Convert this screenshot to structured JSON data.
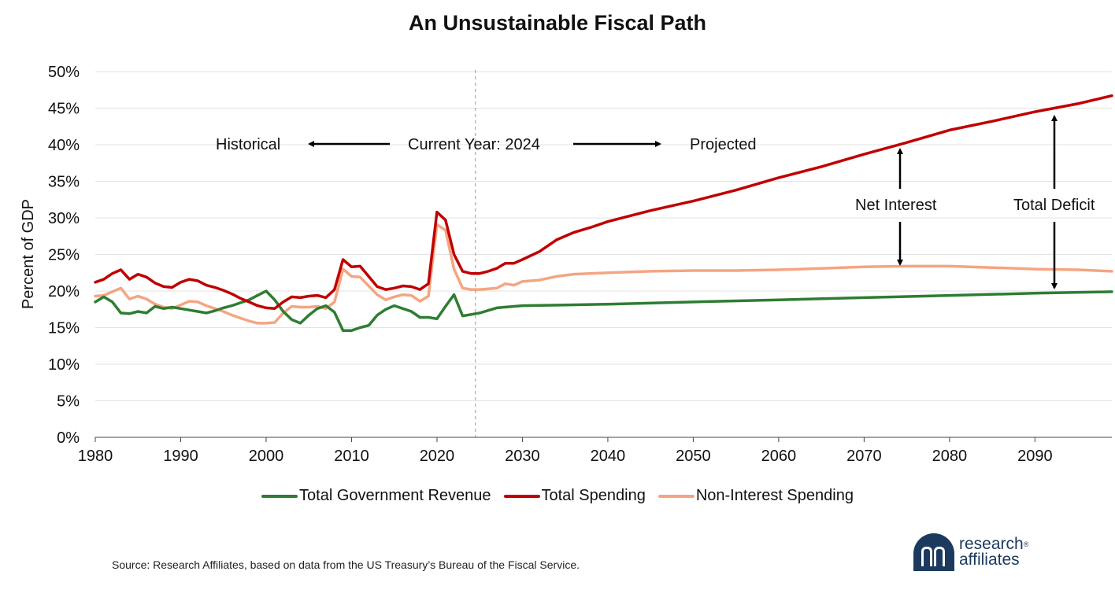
{
  "chart_data": {
    "type": "line",
    "title": "An Unsustainable Fiscal Path",
    "xlabel": "",
    "ylabel": "Percent of GDP",
    "xlim": [
      1980,
      2099
    ],
    "ylim": [
      0,
      50
    ],
    "xticks": [
      "1980",
      "1990",
      "2000",
      "2010",
      "2020",
      "2030",
      "2040",
      "2050",
      "2060",
      "2070",
      "2080",
      "2090"
    ],
    "yticks": [
      "0%",
      "5%",
      "10%",
      "15%",
      "20%",
      "25%",
      "30%",
      "35%",
      "40%",
      "45%",
      "50%"
    ],
    "grid": "horizontal",
    "legend_position": "bottom",
    "series": [
      {
        "name": "Total Government Revenue",
        "color": "#2e7d32",
        "points": [
          [
            1980,
            18.5
          ],
          [
            1981,
            19.2
          ],
          [
            1982,
            18.5
          ],
          [
            1983,
            17.0
          ],
          [
            1984,
            16.9
          ],
          [
            1985,
            17.2
          ],
          [
            1986,
            17.0
          ],
          [
            1987,
            17.9
          ],
          [
            1988,
            17.6
          ],
          [
            1989,
            17.8
          ],
          [
            1990,
            17.6
          ],
          [
            1991,
            17.4
          ],
          [
            1992,
            17.2
          ],
          [
            1993,
            17.0
          ],
          [
            1994,
            17.3
          ],
          [
            1995,
            17.7
          ],
          [
            1996,
            18.0
          ],
          [
            1997,
            18.4
          ],
          [
            1998,
            18.8
          ],
          [
            1999,
            19.4
          ],
          [
            2000,
            20.0
          ],
          [
            2001,
            18.8
          ],
          [
            2002,
            17.2
          ],
          [
            2003,
            16.1
          ],
          [
            2004,
            15.6
          ],
          [
            2005,
            16.7
          ],
          [
            2006,
            17.6
          ],
          [
            2007,
            18.0
          ],
          [
            2008,
            17.1
          ],
          [
            2009,
            14.6
          ],
          [
            2010,
            14.6
          ],
          [
            2011,
            15.0
          ],
          [
            2012,
            15.3
          ],
          [
            2013,
            16.7
          ],
          [
            2014,
            17.5
          ],
          [
            2015,
            18.0
          ],
          [
            2016,
            17.6
          ],
          [
            2017,
            17.2
          ],
          [
            2018,
            16.4
          ],
          [
            2019,
            16.4
          ],
          [
            2020,
            16.2
          ],
          [
            2021,
            17.9
          ],
          [
            2022,
            19.5
          ],
          [
            2023,
            16.6
          ],
          [
            2024,
            16.8
          ],
          [
            2025,
            17.0
          ],
          [
            2027,
            17.7
          ],
          [
            2030,
            18.0
          ],
          [
            2035,
            18.1
          ],
          [
            2040,
            18.2
          ],
          [
            2050,
            18.5
          ],
          [
            2060,
            18.8
          ],
          [
            2070,
            19.1
          ],
          [
            2080,
            19.4
          ],
          [
            2090,
            19.7
          ],
          [
            2099,
            19.9
          ]
        ]
      },
      {
        "name": "Total Spending",
        "color": "#c00000",
        "points": [
          [
            1980,
            21.2
          ],
          [
            1981,
            21.6
          ],
          [
            1982,
            22.4
          ],
          [
            1983,
            22.9
          ],
          [
            1984,
            21.6
          ],
          [
            1985,
            22.3
          ],
          [
            1986,
            21.9
          ],
          [
            1987,
            21.1
          ],
          [
            1988,
            20.6
          ],
          [
            1989,
            20.5
          ],
          [
            1990,
            21.2
          ],
          [
            1991,
            21.6
          ],
          [
            1992,
            21.4
          ],
          [
            1993,
            20.8
          ],
          [
            1994,
            20.5
          ],
          [
            1995,
            20.1
          ],
          [
            1996,
            19.6
          ],
          [
            1997,
            19.0
          ],
          [
            1998,
            18.5
          ],
          [
            1999,
            18.0
          ],
          [
            2000,
            17.7
          ],
          [
            2001,
            17.6
          ],
          [
            2002,
            18.5
          ],
          [
            2003,
            19.2
          ],
          [
            2004,
            19.1
          ],
          [
            2005,
            19.3
          ],
          [
            2006,
            19.4
          ],
          [
            2007,
            19.1
          ],
          [
            2008,
            20.2
          ],
          [
            2009,
            24.3
          ],
          [
            2010,
            23.3
          ],
          [
            2011,
            23.4
          ],
          [
            2012,
            22.0
          ],
          [
            2013,
            20.6
          ],
          [
            2014,
            20.2
          ],
          [
            2015,
            20.4
          ],
          [
            2016,
            20.7
          ],
          [
            2017,
            20.6
          ],
          [
            2018,
            20.2
          ],
          [
            2019,
            21.0
          ],
          [
            2020,
            30.8
          ],
          [
            2021,
            29.7
          ],
          [
            2022,
            25.0
          ],
          [
            2023,
            22.7
          ],
          [
            2024,
            22.4
          ],
          [
            2025,
            22.4
          ],
          [
            2026,
            22.7
          ],
          [
            2027,
            23.1
          ],
          [
            2028,
            23.8
          ],
          [
            2029,
            23.8
          ],
          [
            2030,
            24.3
          ],
          [
            2032,
            25.4
          ],
          [
            2034,
            27.0
          ],
          [
            2036,
            28.0
          ],
          [
            2038,
            28.7
          ],
          [
            2040,
            29.5
          ],
          [
            2045,
            31.0
          ],
          [
            2050,
            32.3
          ],
          [
            2055,
            33.8
          ],
          [
            2060,
            35.5
          ],
          [
            2065,
            37.0
          ],
          [
            2070,
            38.7
          ],
          [
            2075,
            40.3
          ],
          [
            2080,
            42.0
          ],
          [
            2085,
            43.2
          ],
          [
            2090,
            44.5
          ],
          [
            2095,
            45.6
          ],
          [
            2099,
            46.7
          ]
        ]
      },
      {
        "name": "Non-Interest Spending",
        "color": "#f4a582",
        "points": [
          [
            1980,
            19.3
          ],
          [
            1981,
            19.4
          ],
          [
            1982,
            19.9
          ],
          [
            1983,
            20.4
          ],
          [
            1984,
            18.9
          ],
          [
            1985,
            19.3
          ],
          [
            1986,
            18.9
          ],
          [
            1987,
            18.2
          ],
          [
            1988,
            17.8
          ],
          [
            1989,
            17.6
          ],
          [
            1990,
            18.1
          ],
          [
            1991,
            18.6
          ],
          [
            1992,
            18.5
          ],
          [
            1993,
            18.0
          ],
          [
            1994,
            17.6
          ],
          [
            1995,
            17.2
          ],
          [
            1996,
            16.7
          ],
          [
            1997,
            16.3
          ],
          [
            1998,
            15.9
          ],
          [
            1999,
            15.6
          ],
          [
            2000,
            15.6
          ],
          [
            2001,
            15.7
          ],
          [
            2002,
            17.0
          ],
          [
            2003,
            17.9
          ],
          [
            2004,
            17.8
          ],
          [
            2005,
            17.8
          ],
          [
            2006,
            17.9
          ],
          [
            2007,
            17.6
          ],
          [
            2008,
            18.5
          ],
          [
            2009,
            23.0
          ],
          [
            2010,
            22.0
          ],
          [
            2011,
            21.9
          ],
          [
            2012,
            20.7
          ],
          [
            2013,
            19.5
          ],
          [
            2014,
            18.8
          ],
          [
            2015,
            19.2
          ],
          [
            2016,
            19.5
          ],
          [
            2017,
            19.4
          ],
          [
            2018,
            18.6
          ],
          [
            2019,
            19.3
          ],
          [
            2020,
            29.1
          ],
          [
            2021,
            28.3
          ],
          [
            2022,
            23.0
          ],
          [
            2023,
            20.4
          ],
          [
            2024,
            20.2
          ],
          [
            2025,
            20.2
          ],
          [
            2026,
            20.3
          ],
          [
            2027,
            20.4
          ],
          [
            2028,
            21.0
          ],
          [
            2029,
            20.8
          ],
          [
            2030,
            21.3
          ],
          [
            2032,
            21.5
          ],
          [
            2034,
            22.0
          ],
          [
            2036,
            22.3
          ],
          [
            2040,
            22.5
          ],
          [
            2045,
            22.7
          ],
          [
            2050,
            22.8
          ],
          [
            2055,
            22.8
          ],
          [
            2060,
            22.9
          ],
          [
            2065,
            23.1
          ],
          [
            2070,
            23.3
          ],
          [
            2075,
            23.4
          ],
          [
            2080,
            23.4
          ],
          [
            2085,
            23.2
          ],
          [
            2090,
            23.0
          ],
          [
            2095,
            22.9
          ],
          [
            2099,
            22.7
          ]
        ]
      }
    ],
    "annotations": {
      "current_year_x": 2024.5,
      "historical": "Historical",
      "current_year": "Current Year: 2024",
      "projected": "Projected",
      "net_interest": "Net Interest",
      "total_deficit": "Total Deficit"
    }
  },
  "footer": {
    "source": "Source: Research Affiliates, based on data from the US Treasury’s Bureau of the Fiscal Service.",
    "logo_line1": "research",
    "logo_line2": "affiliates",
    "logo_reg": "®"
  }
}
